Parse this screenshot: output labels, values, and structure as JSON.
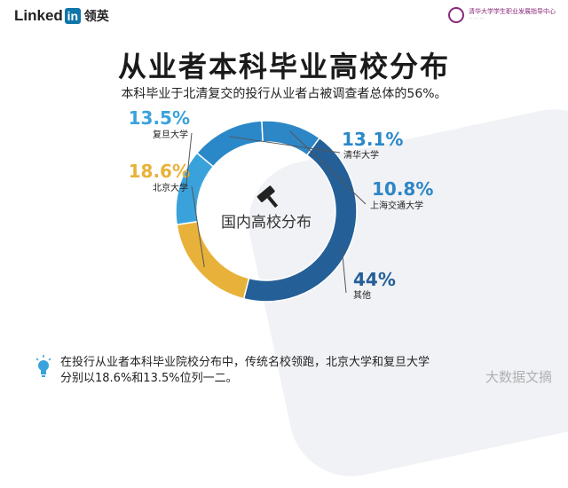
{
  "header": {
    "brand_word": "Linked",
    "brand_box": "in",
    "brand_cn": "领英",
    "sponsor_name": "清华大学学生职业发展指导中心"
  },
  "title": "从业者本科毕业高校分布",
  "subtitle": "本科毕业于北清复交的投行从业者占被调查者总体的56%。",
  "center_label": "国内高校分布",
  "chart_data": {
    "type": "pie",
    "title": "从业者本科毕业高校分布",
    "subtitle": "本科毕业于北清复交的投行从业者占被调查者总体的56%。",
    "center_label": "国内高校分布",
    "slices": [
      {
        "label": "清华大学",
        "value": 13.1,
        "display": "13.1%",
        "color": "#2a88c9"
      },
      {
        "label": "上海交通大学",
        "value": 10.8,
        "display": "10.8%",
        "color": "#2d86c6"
      },
      {
        "label": "其他",
        "value": 44,
        "display": "44%",
        "color": "#245f98"
      },
      {
        "label": "北京大学",
        "value": 18.6,
        "display": "18.6%",
        "color": "#e8b23a"
      },
      {
        "label": "复旦大学",
        "value": 13.5,
        "display": "13.5%",
        "color": "#3aa2db"
      }
    ]
  },
  "footer": {
    "line1": "在投行从业者本科毕业院校分布中，传统名校领跑，北京大学和复旦大学",
    "line2": "分别以18.6%和13.5%位列一二。"
  },
  "watermark": "大数据文摘"
}
